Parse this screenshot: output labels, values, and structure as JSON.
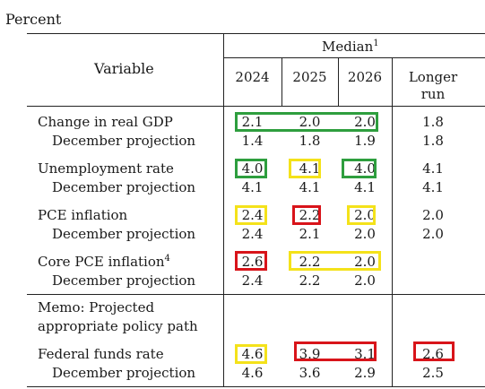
{
  "unit_label": "Percent",
  "header": {
    "variable": "Variable",
    "median": "Median",
    "median_note": "1",
    "columns": [
      "2024",
      "2025",
      "2026"
    ],
    "longer_run_line1": "Longer",
    "longer_run_line2": "run"
  },
  "rows": [
    {
      "label": "Change in real GDP",
      "note": "",
      "values": [
        "2.1",
        "2.0",
        "2.0",
        "1.8"
      ]
    },
    {
      "label": "December projection",
      "note": "",
      "values": [
        "1.4",
        "1.8",
        "1.9",
        "1.8"
      ]
    },
    {
      "label": "Unemployment rate",
      "note": "",
      "values": [
        "4.0",
        "4.1",
        "4.0",
        "4.1"
      ]
    },
    {
      "label": "December projection",
      "note": "",
      "values": [
        "4.1",
        "4.1",
        "4.1",
        "4.1"
      ]
    },
    {
      "label": "PCE inflation",
      "note": "",
      "values": [
        "2.4",
        "2.2",
        "2.0",
        "2.0"
      ]
    },
    {
      "label": "December projection",
      "note": "",
      "values": [
        "2.4",
        "2.1",
        "2.0",
        "2.0"
      ]
    },
    {
      "label": "Core PCE inflation",
      "note": "4",
      "values": [
        "2.6",
        "2.2",
        "2.0",
        ""
      ]
    },
    {
      "label": "December projection",
      "note": "",
      "values": [
        "2.4",
        "2.2",
        "2.0",
        ""
      ]
    }
  ],
  "memo_line1": "Memo: Projected",
  "memo_line2": "appropriate policy path",
  "funds_rows": [
    {
      "label": "Federal funds rate",
      "values": [
        "4.6",
        "3.9",
        "3.1",
        "2.6"
      ]
    },
    {
      "label": "December projection",
      "values": [
        "4.6",
        "3.6",
        "2.9",
        "2.5"
      ]
    }
  ],
  "highlight_colors": {
    "green": "#2e9e3e",
    "yellow": "#f4e21a",
    "red": "#d8141a"
  }
}
